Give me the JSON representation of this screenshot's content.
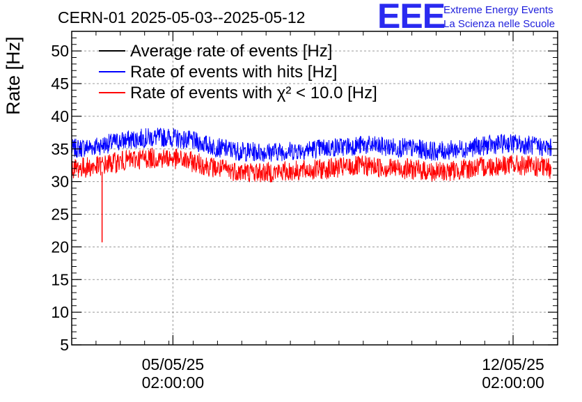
{
  "chart_data": {
    "type": "line",
    "title": "CERN-01 2025-05-03--2025-05-12",
    "ylabel": "Rate [Hz]",
    "xlabel": "",
    "ylim": [
      5,
      53
    ],
    "yticks": [
      "5",
      "10",
      "15",
      "20",
      "25",
      "30",
      "35",
      "40",
      "45",
      "50"
    ],
    "yticks_values": [
      5,
      10,
      15,
      20,
      25,
      30,
      35,
      40,
      45,
      50
    ],
    "xticks": [
      {
        "date": "05/05/25",
        "time": "02:00:00"
      },
      {
        "date": "12/05/25",
        "time": "02:00:00"
      }
    ],
    "x_axis_range": [
      "2025-05-03",
      "2025-05-13"
    ],
    "grid": true,
    "legend_position": "top-left",
    "series": [
      {
        "name": "Average rate of events [Hz]",
        "color": "#000000",
        "values": []
      },
      {
        "name": "Rate of events with hits [Hz]",
        "color": "#0000ff",
        "x": [
          "2025-05-03 00:00",
          "2025-05-03 12:00",
          "2025-05-04 00:00",
          "2025-05-04 12:00",
          "2025-05-05 00:00",
          "2025-05-05 12:00",
          "2025-05-06 00:00",
          "2025-05-06 12:00",
          "2025-05-07 00:00",
          "2025-05-07 12:00",
          "2025-05-08 00:00",
          "2025-05-08 12:00",
          "2025-05-09 00:00",
          "2025-05-09 12:00",
          "2025-05-10 00:00",
          "2025-05-10 12:00",
          "2025-05-11 00:00",
          "2025-05-11 12:00",
          "2025-05-12 00:00",
          "2025-05-12 12:00",
          "2025-05-12 21:00"
        ],
        "values": [
          35.0,
          35.4,
          36.2,
          36.7,
          36.8,
          36.2,
          35.2,
          34.6,
          34.5,
          34.7,
          35.0,
          35.3,
          35.6,
          35.3,
          35.1,
          34.6,
          35.0,
          35.5,
          35.9,
          35.5,
          35.1
        ]
      },
      {
        "name": "Rate of events with χ² < 10.0 [Hz]",
        "color": "#ff0000",
        "x": [
          "2025-05-03 00:00",
          "2025-05-03 12:00",
          "2025-05-04 00:00",
          "2025-05-04 12:00",
          "2025-05-05 00:00",
          "2025-05-05 12:00",
          "2025-05-06 00:00",
          "2025-05-06 12:00",
          "2025-05-07 00:00",
          "2025-05-07 12:00",
          "2025-05-08 00:00",
          "2025-05-08 12:00",
          "2025-05-09 00:00",
          "2025-05-09 12:00",
          "2025-05-10 00:00",
          "2025-05-10 12:00",
          "2025-05-11 00:00",
          "2025-05-11 12:00",
          "2025-05-12 00:00",
          "2025-05-12 12:00",
          "2025-05-12 21:00"
        ],
        "values": [
          32.0,
          32.3,
          33.1,
          33.6,
          33.6,
          33.0,
          32.0,
          31.5,
          31.4,
          31.6,
          31.8,
          32.1,
          32.4,
          32.1,
          31.9,
          31.4,
          31.8,
          32.3,
          32.6,
          32.3,
          32.0
        ],
        "outlier": {
          "x": "2025-05-03 15:00",
          "value": 20.7
        }
      }
    ]
  },
  "logo": {
    "mark": "EEE",
    "line1": "Extreme Energy Events",
    "line2": "La Scienza nelle Scuole"
  }
}
